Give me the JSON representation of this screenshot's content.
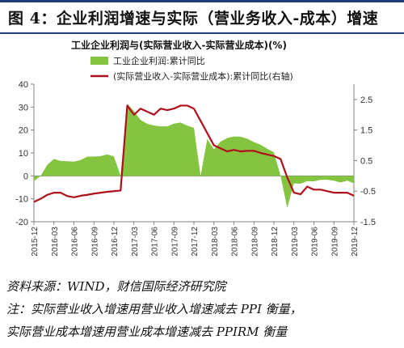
{
  "figure_title": "图 4：企业利润增速与实际（营业务收入-成本）增速",
  "footer": {
    "source": "资料来源：WIND，财信国际经济研究院",
    "note1": "注：实际营业收入增速用营业收入增速减去 PPI 衡量，",
    "note2": "实际营业成本增速用营业成本增速减去 PPIRM 衡量"
  },
  "colors": {
    "area": "#84c441",
    "line": "#b0101c",
    "axis": "#808080"
  },
  "chart_data": {
    "type": "area",
    "title": "工业企业利润与(实际营业收入-实际营业成本)(%)",
    "legend_placement": "top",
    "left_axis": {
      "ylim": [
        -20,
        40
      ],
      "ticks": [
        "-20",
        "-10",
        "0",
        "10",
        "20",
        "30",
        "40"
      ]
    },
    "right_axis": {
      "ylim": [
        -1.5,
        3.0
      ],
      "ticks": [
        "-1.5",
        "-0.5",
        "0.5",
        "1.5",
        "2.5"
      ]
    },
    "x_tick_labels": [
      "2015-12",
      "2016-03",
      "2016-06",
      "2016-09",
      "2016-12",
      "2017-03",
      "2017-06",
      "2017-09",
      "2017-12",
      "2018-03",
      "2018-06",
      "2018-09",
      "2018-12",
      "2019-03",
      "2019-06",
      "2019-09",
      "2019-12"
    ],
    "x": [
      "2015-12",
      "2016-01",
      "2016-02",
      "2016-03",
      "2016-04",
      "2016-05",
      "2016-06",
      "2016-07",
      "2016-08",
      "2016-09",
      "2016-10",
      "2016-11",
      "2016-12",
      "2017-01",
      "2017-02",
      "2017-03",
      "2017-04",
      "2017-05",
      "2017-06",
      "2017-07",
      "2017-08",
      "2017-09",
      "2017-10",
      "2017-11",
      "2017-12",
      "2018-01",
      "2018-02",
      "2018-03",
      "2018-04",
      "2018-05",
      "2018-06",
      "2018-07",
      "2018-08",
      "2018-09",
      "2018-10",
      "2018-11",
      "2018-12",
      "2019-01",
      "2019-02",
      "2019-03",
      "2019-04",
      "2019-05",
      "2019-06",
      "2019-07",
      "2019-08",
      "2019-09",
      "2019-10",
      "2019-11",
      "2019-12"
    ],
    "series": [
      {
        "name": "工业企业利润:累计同比",
        "axis": "left",
        "values": [
          -2.3,
          0,
          4.8,
          7.4,
          6.5,
          6.4,
          6.2,
          6.9,
          8.4,
          8.4,
          8.6,
          9.4,
          8.5,
          0,
          31.5,
          28.3,
          24.4,
          22.7,
          22.0,
          21.6,
          21.6,
          22.8,
          23.3,
          21.9,
          21.0,
          0,
          16.1,
          11.6,
          15.0,
          16.5,
          17.2,
          17.1,
          16.2,
          14.7,
          13.6,
          11.8,
          10.3,
          0,
          -14.0,
          -3.3,
          -3.4,
          -2.3,
          -2.4,
          -1.7,
          -1.7,
          -2.1,
          -2.9,
          -2.1,
          -3.3
        ]
      },
      {
        "name": "(实际营业收入-实际营业成本):累计同比(右轴)",
        "axis": "right",
        "values": [
          -0.85,
          -0.75,
          -0.62,
          -0.55,
          -0.55,
          -0.66,
          -0.7,
          -0.65,
          -0.62,
          -0.58,
          -0.55,
          -0.52,
          -0.5,
          -0.48,
          2.3,
          2.0,
          2.2,
          2.1,
          2.0,
          2.2,
          2.15,
          2.2,
          2.3,
          2.3,
          2.2,
          1.8,
          1.4,
          1.0,
          0.9,
          0.8,
          0.85,
          0.8,
          0.82,
          0.82,
          0.75,
          0.7,
          0.65,
          0.55,
          -0.05,
          -0.55,
          -0.6,
          -0.35,
          -0.45,
          -0.45,
          -0.5,
          -0.55,
          -0.55,
          -0.55,
          -0.65
        ]
      }
    ]
  }
}
